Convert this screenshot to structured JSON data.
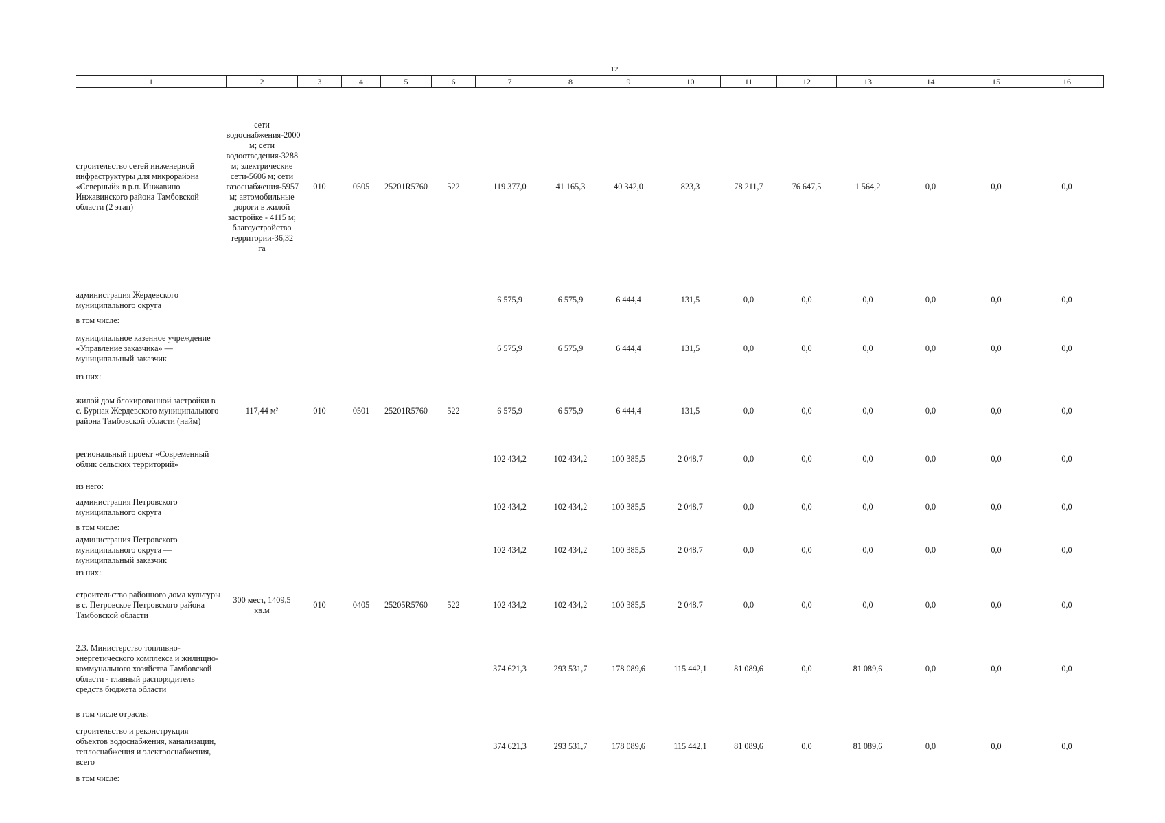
{
  "page_number": "12",
  "columns": [
    "1",
    "2",
    "3",
    "4",
    "5",
    "6",
    "7",
    "8",
    "9",
    "10",
    "11",
    "12",
    "13",
    "14",
    "15",
    "16"
  ],
  "rows": [
    {
      "type": "data",
      "name": "строительство сетей инженерной инфраструктуры для микрорайона «Северный» в р.п. Инжавино Инжавинского района Тамбовской области (2 этап)",
      "measure": "сети водоснабжения-2000 м; сети водоотведения-3288 м; электрические сети-5606 м; сети газоснабжения-5957 м; автомобильные дороги в жилой застройке - 4115 м; благоустройство территории-36,32 га",
      "c3": "010",
      "c4": "0505",
      "c5": "25201R5760",
      "c6": "522",
      "values": [
        "119 377,0",
        "41 165,3",
        "40 342,0",
        "823,3",
        "78 211,7",
        "76 647,5",
        "1 564,2",
        "0,0",
        "0,0",
        "0,0"
      ]
    },
    {
      "type": "data",
      "name": "администрация Жердевского муниципального округа",
      "measure": "",
      "c3": "",
      "c4": "",
      "c5": "",
      "c6": "",
      "values": [
        "6 575,9",
        "6 575,9",
        "6 444,4",
        "131,5",
        "0,0",
        "0,0",
        "0,0",
        "0,0",
        "0,0",
        "0,0"
      ]
    },
    {
      "type": "note",
      "text": "в том числе:"
    },
    {
      "type": "data",
      "name": "муниципальное казенное учреждение «Управление заказчика» — муниципальный заказчик",
      "measure": "",
      "c3": "",
      "c4": "",
      "c5": "",
      "c6": "",
      "values": [
        "6 575,9",
        "6 575,9",
        "6 444,4",
        "131,5",
        "0,0",
        "0,0",
        "0,0",
        "0,0",
        "0,0",
        "0,0"
      ]
    },
    {
      "type": "note",
      "text": "из них:"
    },
    {
      "type": "data",
      "name": "жилой дом блокированной застройки в с. Бурнак Жердевского муниципального района Тамбовской области (найм)",
      "measure": "117,44 м²",
      "c3": "010",
      "c4": "0501",
      "c5": "25201R5760",
      "c6": "522",
      "values": [
        "6 575,9",
        "6 575,9",
        "6 444,4",
        "131,5",
        "0,0",
        "0,0",
        "0,0",
        "0,0",
        "0,0",
        "0,0"
      ]
    },
    {
      "type": "data",
      "name": "региональный проект «Современный облик сельских территорий»",
      "measure": "",
      "c3": "",
      "c4": "",
      "c5": "",
      "c6": "",
      "values": [
        "102 434,2",
        "102 434,2",
        "100 385,5",
        "2 048,7",
        "0,0",
        "0,0",
        "0,0",
        "0,0",
        "0,0",
        "0,0"
      ]
    },
    {
      "type": "note",
      "text": "из него:"
    },
    {
      "type": "data",
      "name": "администрация Петровского муниципального округа",
      "measure": "",
      "c3": "",
      "c4": "",
      "c5": "",
      "c6": "",
      "values": [
        "102 434,2",
        "102 434,2",
        "100 385,5",
        "2 048,7",
        "0,0",
        "0,0",
        "0,0",
        "0,0",
        "0,0",
        "0,0"
      ]
    },
    {
      "type": "note",
      "text": "в том числе:"
    },
    {
      "type": "data",
      "name": "администрация Петровского муниципального округа — муниципальный заказчик",
      "measure": "",
      "c3": "",
      "c4": "",
      "c5": "",
      "c6": "",
      "values": [
        "102 434,2",
        "102 434,2",
        "100 385,5",
        "2 048,7",
        "0,0",
        "0,0",
        "0,0",
        "0,0",
        "0,0",
        "0,0"
      ]
    },
    {
      "type": "note",
      "text": "из них:"
    },
    {
      "type": "data",
      "name": "строительство районного дома культуры в с. Петровское Петровского района Тамбовской области",
      "measure": "300 мест, 1409,5 кв.м",
      "c3": "010",
      "c4": "0405",
      "c5": "25205R5760",
      "c6": "522",
      "values": [
        "102 434,2",
        "102 434,2",
        "100 385,5",
        "2 048,7",
        "0,0",
        "0,0",
        "0,0",
        "0,0",
        "0,0",
        "0,0"
      ]
    },
    {
      "type": "data",
      "name": "2.3. Министерство топливно-энергетического комплекса и жилищно-коммунального хозяйства Тамбовской области - главный распорядитель средств бюджета области",
      "measure": "",
      "c3": "",
      "c4": "",
      "c5": "",
      "c6": "",
      "values": [
        "374 621,3",
        "293 531,7",
        "178 089,6",
        "115 442,1",
        "81 089,6",
        "0,0",
        "81 089,6",
        "0,0",
        "0,0",
        "0,0"
      ]
    },
    {
      "type": "note",
      "text": "в том числе отрасль:"
    },
    {
      "type": "data",
      "name": "строительство и реконструкция объектов водоснабжения, канализации, теплоснабжения и электроснабжения, всего",
      "measure": "",
      "c3": "",
      "c4": "",
      "c5": "",
      "c6": "",
      "values": [
        "374 621,3",
        "293 531,7",
        "178 089,6",
        "115 442,1",
        "81 089,6",
        "0,0",
        "81 089,6",
        "0,0",
        "0,0",
        "0,0"
      ]
    },
    {
      "type": "note",
      "text": "в том числе:"
    }
  ]
}
